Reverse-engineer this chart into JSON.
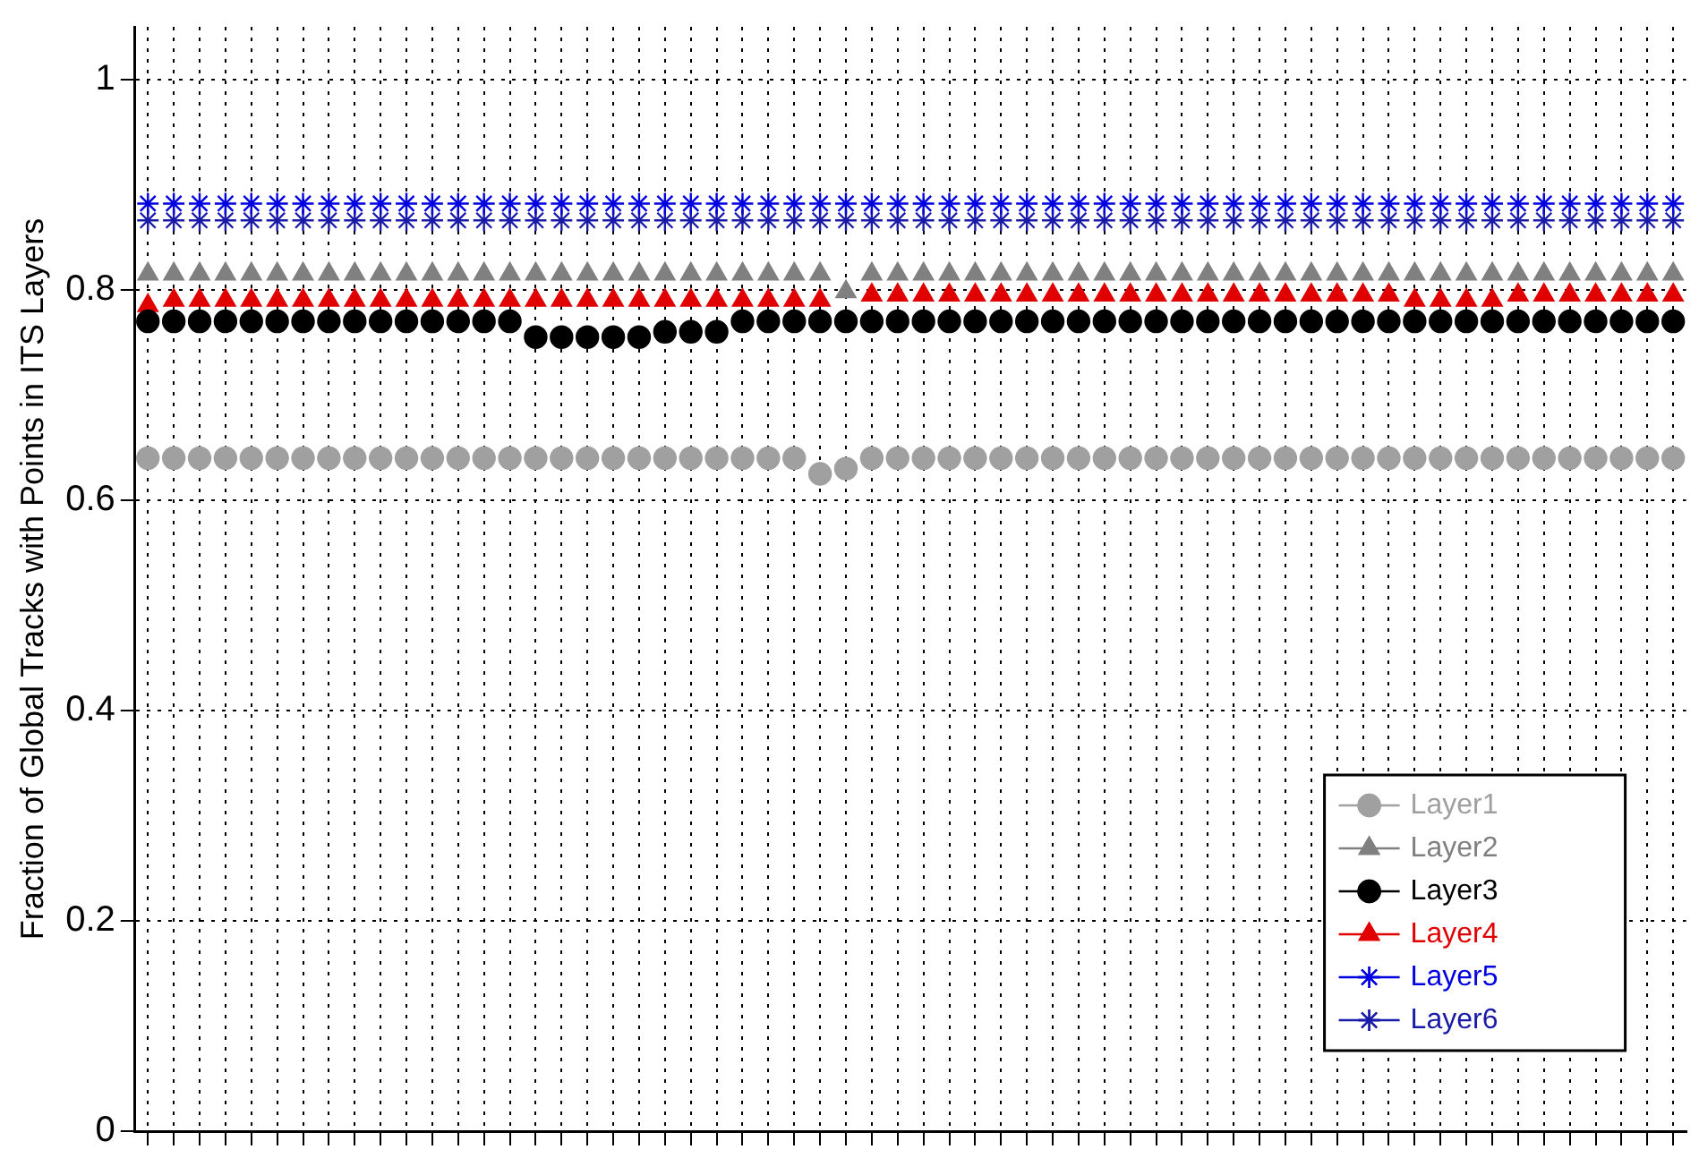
{
  "chart_data": {
    "type": "scatter",
    "ylabel": "Fraction of Global Tracks with Points in ITS Layers",
    "categories": [
      null,
      null,
      null,
      null,
      null,
      null,
      null,
      null,
      null,
      null,
      null,
      null,
      null,
      null,
      null,
      null,
      null,
      null,
      null,
      null,
      null,
      null,
      null,
      null,
      null,
      null,
      null,
      null,
      null,
      null,
      null,
      null,
      null,
      null,
      null,
      null,
      null,
      null,
      null,
      null,
      null,
      null,
      null,
      null,
      null,
      null,
      null,
      null,
      null,
      null,
      null,
      null,
      null,
      null,
      null,
      null,
      null,
      null,
      null,
      null
    ],
    "ylim": [
      0,
      1.05
    ],
    "yticks": [
      0,
      0.2,
      0.4,
      0.6,
      0.8,
      1
    ],
    "grid": true,
    "legend": "bottom right",
    "tick_labels": "y",
    "series": [
      {
        "name": "Layer1",
        "color": "#a0a0a0",
        "marker": "circle",
        "values": [
          0.64,
          0.64,
          0.64,
          0.64,
          0.64,
          0.64,
          0.64,
          0.64,
          0.64,
          0.64,
          0.64,
          0.64,
          0.64,
          0.64,
          0.64,
          0.64,
          0.64,
          0.64,
          0.64,
          0.64,
          0.64,
          0.64,
          0.64,
          0.64,
          0.64,
          0.64,
          0.625,
          0.63,
          0.64,
          0.64,
          0.64,
          0.64,
          0.64,
          0.64,
          0.64,
          0.64,
          0.64,
          0.64,
          0.64,
          0.64,
          0.64,
          0.64,
          0.64,
          0.64,
          0.64,
          0.64,
          0.64,
          0.64,
          0.64,
          0.64,
          0.64,
          0.64,
          0.64,
          0.64,
          0.64,
          0.64,
          0.64,
          0.64,
          0.64,
          0.64
        ]
      },
      {
        "name": "Layer2",
        "color": "#808080",
        "marker": "triangle",
        "values": [
          0.815,
          0.815,
          0.815,
          0.815,
          0.815,
          0.815,
          0.815,
          0.815,
          0.815,
          0.815,
          0.815,
          0.815,
          0.815,
          0.815,
          0.815,
          0.815,
          0.815,
          0.815,
          0.815,
          0.815,
          0.815,
          0.815,
          0.815,
          0.815,
          0.815,
          0.815,
          0.815,
          0.798,
          0.815,
          0.815,
          0.815,
          0.815,
          0.815,
          0.815,
          0.815,
          0.815,
          0.815,
          0.815,
          0.815,
          0.815,
          0.815,
          0.815,
          0.815,
          0.815,
          0.815,
          0.815,
          0.815,
          0.815,
          0.815,
          0.815,
          0.815,
          0.815,
          0.815,
          0.815,
          0.815,
          0.815,
          0.815,
          0.815,
          0.815,
          0.815
        ]
      },
      {
        "name": "Layer3",
        "color": "#000000",
        "marker": "circle",
        "values": [
          0.77,
          0.77,
          0.77,
          0.77,
          0.77,
          0.77,
          0.77,
          0.77,
          0.77,
          0.77,
          0.77,
          0.77,
          0.77,
          0.77,
          0.77,
          0.755,
          0.755,
          0.755,
          0.755,
          0.755,
          0.76,
          0.76,
          0.76,
          0.77,
          0.77,
          0.77,
          0.77,
          0.77,
          0.77,
          0.77,
          0.77,
          0.77,
          0.77,
          0.77,
          0.77,
          0.77,
          0.77,
          0.77,
          0.77,
          0.77,
          0.77,
          0.77,
          0.77,
          0.77,
          0.77,
          0.77,
          0.77,
          0.77,
          0.77,
          0.77,
          0.77,
          0.77,
          0.77,
          0.77,
          0.77,
          0.77,
          0.77,
          0.77,
          0.77,
          0.77
        ]
      },
      {
        "name": "Layer4",
        "color": "#e00000",
        "marker": "triangle",
        "values": [
          0.785,
          0.79,
          0.79,
          0.79,
          0.79,
          0.79,
          0.79,
          0.79,
          0.79,
          0.79,
          0.79,
          0.79,
          0.79,
          0.79,
          0.79,
          0.79,
          0.79,
          0.79,
          0.79,
          0.79,
          0.79,
          0.79,
          0.79,
          0.79,
          0.79,
          0.79,
          0.79,
          null,
          0.795,
          0.795,
          0.795,
          0.795,
          0.795,
          0.795,
          0.795,
          0.795,
          0.795,
          0.795,
          0.795,
          0.795,
          0.795,
          0.795,
          0.795,
          0.795,
          0.795,
          0.795,
          0.795,
          0.795,
          0.795,
          0.79,
          0.79,
          0.79,
          0.79,
          0.795,
          0.795,
          0.795,
          0.795,
          0.795,
          0.795,
          0.795
        ]
      },
      {
        "name": "Layer5",
        "color": "#0000e0",
        "marker": "cross",
        "values": [
          0.882,
          0.882,
          0.882,
          0.882,
          0.882,
          0.882,
          0.882,
          0.882,
          0.882,
          0.882,
          0.882,
          0.882,
          0.882,
          0.882,
          0.882,
          0.882,
          0.882,
          0.882,
          0.882,
          0.882,
          0.882,
          0.882,
          0.882,
          0.882,
          0.882,
          0.882,
          0.882,
          0.882,
          0.882,
          0.882,
          0.882,
          0.882,
          0.882,
          0.882,
          0.882,
          0.882,
          0.882,
          0.882,
          0.882,
          0.882,
          0.882,
          0.882,
          0.882,
          0.882,
          0.882,
          0.882,
          0.882,
          0.882,
          0.882,
          0.882,
          0.882,
          0.882,
          0.882,
          0.882,
          0.882,
          0.882,
          0.882,
          0.882,
          0.882,
          0.882
        ]
      },
      {
        "name": "Layer6",
        "color": "#1a1aa8",
        "marker": "cross",
        "values": [
          0.866,
          0.866,
          0.866,
          0.866,
          0.866,
          0.866,
          0.866,
          0.866,
          0.866,
          0.866,
          0.866,
          0.866,
          0.866,
          0.866,
          0.866,
          0.866,
          0.866,
          0.866,
          0.866,
          0.866,
          0.866,
          0.866,
          0.866,
          0.866,
          0.866,
          0.866,
          0.866,
          0.866,
          0.866,
          0.866,
          0.866,
          0.866,
          0.866,
          0.866,
          0.866,
          0.866,
          0.866,
          0.866,
          0.866,
          0.866,
          0.866,
          0.866,
          0.866,
          0.866,
          0.866,
          0.866,
          0.866,
          0.866,
          0.866,
          0.866,
          0.866,
          0.866,
          0.866,
          0.866,
          0.866,
          0.866,
          0.866,
          0.866,
          0.866,
          0.866
        ]
      }
    ]
  }
}
